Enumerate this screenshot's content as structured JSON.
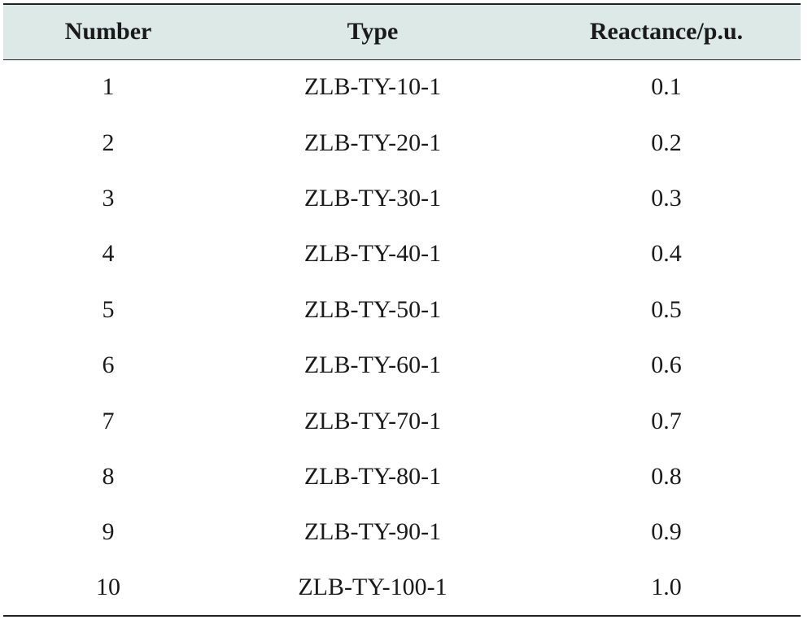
{
  "table": {
    "headers": [
      "Number",
      "Type",
      "Reactance/p.u."
    ],
    "rows": [
      [
        "1",
        "ZLB-TY-10-1",
        "0.1"
      ],
      [
        "2",
        "ZLB-TY-20-1",
        "0.2"
      ],
      [
        "3",
        "ZLB-TY-30-1",
        "0.3"
      ],
      [
        "4",
        "ZLB-TY-40-1",
        "0.4"
      ],
      [
        "5",
        "ZLB-TY-50-1",
        "0.5"
      ],
      [
        "6",
        "ZLB-TY-60-1",
        "0.6"
      ],
      [
        "7",
        "ZLB-TY-70-1",
        "0.7"
      ],
      [
        "8",
        "ZLB-TY-80-1",
        "0.8"
      ],
      [
        "9",
        "ZLB-TY-90-1",
        "0.9"
      ],
      [
        "10",
        "ZLB-TY-100-1",
        "1.0"
      ]
    ]
  },
  "colors": {
    "header_background": "#dce9e6",
    "rule": "#222222",
    "text": "#1a1a1a"
  }
}
